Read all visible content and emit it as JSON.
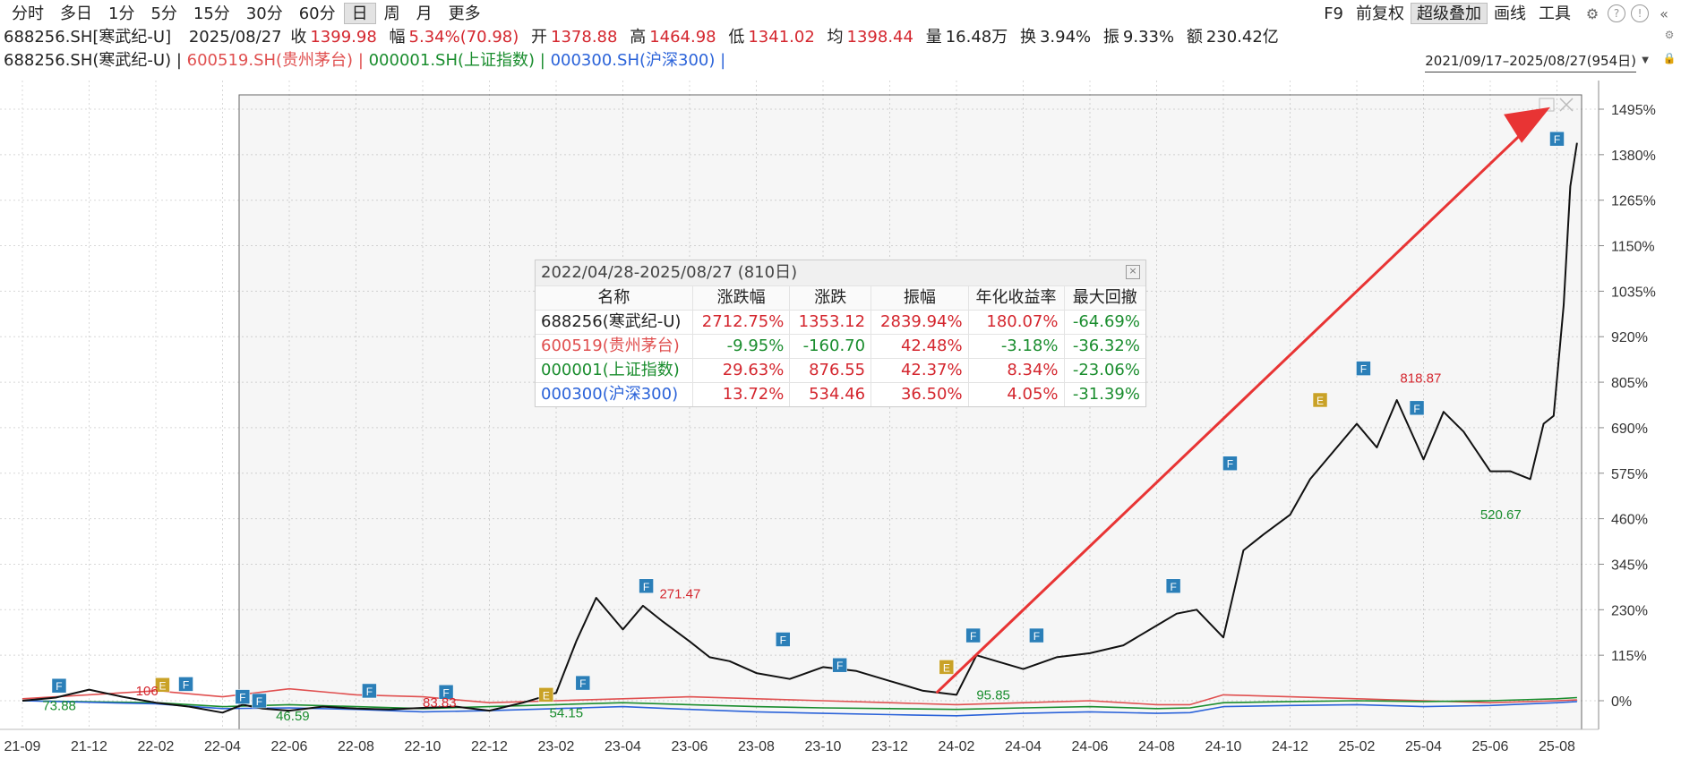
{
  "toolbar": {
    "periods": [
      "分时",
      "多日",
      "1分",
      "5分",
      "15分",
      "30分",
      "60分",
      "日",
      "周",
      "月",
      "更多"
    ],
    "active_period": "日",
    "right_tools": [
      "F9",
      "前复权",
      "超级叠加",
      "画线",
      "工具"
    ],
    "active_tool": "超级叠加"
  },
  "quote": {
    "code": "688256.SH[寒武纪-U]",
    "date": "2025/08/27",
    "close_label": "收",
    "close": "1399.98",
    "change_label": "幅",
    "change": "5.34%(70.98)",
    "open_label": "开",
    "open": "1378.88",
    "high_label": "高",
    "high": "1464.98",
    "low_label": "低",
    "low": "1341.02",
    "avg_label": "均",
    "avg": "1398.44",
    "vol_label": "量",
    "vol": "16.48万",
    "turnover_label": "换",
    "turnover": "3.94%",
    "amp_label": "振",
    "amp": "9.33%",
    "amount_label": "额",
    "amount": "230.42亿"
  },
  "legend": {
    "items": [
      {
        "label": "688256.SH(寒武纪-U)",
        "color": "#222222"
      },
      {
        "label": "600519.SH(贵州茅台)",
        "color": "#e05050"
      },
      {
        "label": "000001.SH(上证指数)",
        "color": "#1a8d2e"
      },
      {
        "label": "000300.SH(沪深300)",
        "color": "#2b63d9"
      }
    ],
    "separator": " | ",
    "range": "2021/09/17–2025/08/27(954日)"
  },
  "stats": {
    "title": "2022/04/28-2025/08/27 (810日)",
    "columns": [
      "名称",
      "涨跌幅",
      "涨跌",
      "振幅",
      "年化收益率",
      "最大回撤"
    ],
    "rows": [
      {
        "name": "688256(寒武纪-U)",
        "color": "#222222",
        "pct": "2712.75%",
        "chg": "1353.12",
        "amp": "2839.94%",
        "annual": "180.07%",
        "dd": "-64.69%"
      },
      {
        "name": "600519(贵州茅台)",
        "color": "#e05050",
        "pct": "-9.95%",
        "chg": "-160.70",
        "amp": "42.48%",
        "annual": "-3.18%",
        "dd": "-36.32%"
      },
      {
        "name": "000001(上证指数)",
        "color": "#1a8d2e",
        "pct": "29.63%",
        "chg": "876.55",
        "amp": "42.37%",
        "annual": "8.34%",
        "dd": "-23.06%"
      },
      {
        "name": "000300(沪深300)",
        "color": "#2b63d9",
        "pct": "13.72%",
        "chg": "534.46",
        "amp": "36.50%",
        "annual": "4.05%",
        "dd": "-31.39%"
      }
    ]
  },
  "chart_data": {
    "type": "line",
    "ylabel": "",
    "y_ticks": [
      "1495%",
      "1380%",
      "1265%",
      "1150%",
      "1035%",
      "920%",
      "805%",
      "690%",
      "575%",
      "460%",
      "345%",
      "230%",
      "115%",
      "0%"
    ],
    "y_tick_values": [
      1495,
      1380,
      1265,
      1150,
      1035,
      920,
      805,
      690,
      575,
      460,
      345,
      230,
      115,
      0
    ],
    "x_ticks": [
      "21-09",
      "21-12",
      "22-02",
      "22-04",
      "22-06",
      "22-08",
      "22-10",
      "22-12",
      "23-02",
      "23-04",
      "23-06",
      "23-08",
      "23-10",
      "23-12",
      "24-02",
      "24-04",
      "24-06",
      "24-08",
      "24-10",
      "24-12",
      "25-02",
      "25-04",
      "25-06",
      "25-08"
    ],
    "ylim": [
      -50,
      1540
    ],
    "series": [
      {
        "name": "688256.SH(寒武纪-U)",
        "color": "#111111",
        "x": [
          0,
          0.5,
          1.0,
          1.5,
          2.0,
          2.5,
          3.0,
          3.3,
          3.6,
          4.0,
          4.5,
          5.0,
          5.5,
          6.0,
          6.5,
          7.0,
          7.5,
          8.0,
          8.3,
          8.6,
          9.0,
          9.3,
          9.6,
          10.0,
          10.3,
          10.6,
          11.0,
          11.5,
          12.0,
          12.5,
          13.0,
          13.5,
          14.0,
          14.3,
          14.6,
          15.0,
          15.5,
          16.0,
          16.5,
          17.0,
          17.3,
          17.6,
          18.0,
          18.3,
          18.6,
          19.0,
          19.3,
          19.6,
          20.0,
          20.3,
          20.6,
          21.0,
          21.3,
          21.6,
          22.0,
          22.3,
          22.6,
          22.8,
          22.95,
          23.1,
          23.2,
          23.3
        ],
        "y": [
          0,
          8,
          28,
          10,
          -5,
          -15,
          -30,
          -10,
          -20,
          -25,
          -15,
          -20,
          -22,
          -18,
          -15,
          -25,
          -5,
          20,
          150,
          260,
          180,
          240,
          200,
          150,
          110,
          100,
          70,
          55,
          85,
          75,
          50,
          25,
          15,
          115,
          100,
          80,
          110,
          120,
          140,
          190,
          220,
          230,
          160,
          380,
          420,
          470,
          560,
          620,
          700,
          640,
          760,
          610,
          730,
          680,
          580,
          580,
          560,
          700,
          720,
          1000,
          1300,
          1410
        ]
      },
      {
        "name": "600519.SH(贵州茅台)",
        "color": "#e05050",
        "x": [
          0,
          2,
          3,
          4,
          5,
          6,
          7,
          8,
          9,
          10,
          11,
          12,
          13,
          14,
          15,
          16,
          17,
          17.5,
          18,
          19,
          20,
          21,
          22,
          23,
          23.3
        ],
        "y": [
          5,
          25,
          10,
          30,
          15,
          10,
          -5,
          0,
          5,
          10,
          5,
          0,
          -5,
          -10,
          -5,
          0,
          -10,
          -10,
          15,
          10,
          5,
          0,
          -5,
          0,
          2
        ]
      },
      {
        "name": "000001.SH(上证指数)",
        "color": "#1a8d2e",
        "x": [
          0,
          2,
          3,
          4,
          5,
          6,
          7,
          8,
          9,
          10,
          11,
          12,
          13,
          14,
          15,
          16,
          17,
          17.5,
          18,
          19,
          20,
          21,
          22,
          23,
          23.3
        ],
        "y": [
          0,
          -5,
          -15,
          -10,
          -15,
          -20,
          -15,
          -10,
          -5,
          -10,
          -15,
          -18,
          -20,
          -22,
          -18,
          -15,
          -20,
          -18,
          -5,
          -2,
          0,
          -2,
          0,
          5,
          8
        ]
      },
      {
        "name": "000300.SH(沪深300)",
        "color": "#2b63d9",
        "x": [
          0,
          2,
          3,
          4,
          5,
          6,
          7,
          8,
          9,
          10,
          11,
          12,
          13,
          14,
          15,
          16,
          17,
          17.5,
          18,
          19,
          20,
          21,
          22,
          23,
          23.3
        ],
        "y": [
          0,
          -8,
          -20,
          -18,
          -22,
          -28,
          -25,
          -20,
          -15,
          -22,
          -28,
          -32,
          -35,
          -38,
          -32,
          -28,
          -32,
          -30,
          -15,
          -12,
          -10,
          -15,
          -12,
          -5,
          -2
        ]
      }
    ],
    "annotations": [
      {
        "label": "73.88",
        "x": 0.3,
        "y": -12,
        "color": "#1a8d2e"
      },
      {
        "label": "106",
        "x": 1.7,
        "y": 25,
        "color": "#d4262e"
      },
      {
        "label": "46.59",
        "x": 3.8,
        "y": -38,
        "color": "#1a8d2e"
      },
      {
        "label": "83.83",
        "x": 6.0,
        "y": -5,
        "color": "#d4262e"
      },
      {
        "label": "54.15",
        "x": 7.9,
        "y": -30,
        "color": "#1a8d2e"
      },
      {
        "label": "271.47",
        "x": 9.55,
        "y": 270,
        "color": "#d4262e"
      },
      {
        "label": "95.85",
        "x": 14.3,
        "y": 15,
        "color": "#1a8d2e"
      },
      {
        "label": "818.87",
        "x": 20.65,
        "y": 815,
        "color": "#d4262e"
      },
      {
        "label": "520.67",
        "x": 21.85,
        "y": 470,
        "color": "#1a8d2e"
      }
    ],
    "events": [
      {
        "type": "F",
        "x": 0.55,
        "y": 38
      },
      {
        "type": "E",
        "x": 2.1,
        "y": 40
      },
      {
        "type": "F",
        "x": 2.45,
        "y": 42
      },
      {
        "type": "F",
        "x": 3.3,
        "y": 10
      },
      {
        "type": "F",
        "x": 3.55,
        "y": 0
      },
      {
        "type": "F",
        "x": 5.2,
        "y": 25
      },
      {
        "type": "F",
        "x": 6.35,
        "y": 22
      },
      {
        "type": "E",
        "x": 7.85,
        "y": 15
      },
      {
        "type": "F",
        "x": 8.4,
        "y": 45
      },
      {
        "type": "F",
        "x": 9.35,
        "y": 290
      },
      {
        "type": "F",
        "x": 11.4,
        "y": 155
      },
      {
        "type": "F",
        "x": 12.25,
        "y": 90
      },
      {
        "type": "E",
        "x": 13.85,
        "y": 85
      },
      {
        "type": "F",
        "x": 14.25,
        "y": 165
      },
      {
        "type": "F",
        "x": 15.2,
        "y": 165
      },
      {
        "type": "F",
        "x": 17.25,
        "y": 290
      },
      {
        "type": "F",
        "x": 18.1,
        "y": 600
      },
      {
        "type": "E",
        "x": 19.45,
        "y": 760
      },
      {
        "type": "F",
        "x": 20.1,
        "y": 840
      },
      {
        "type": "F",
        "x": 20.9,
        "y": 740
      },
      {
        "type": "F",
        "x": 23.0,
        "y": 1420
      }
    ]
  }
}
